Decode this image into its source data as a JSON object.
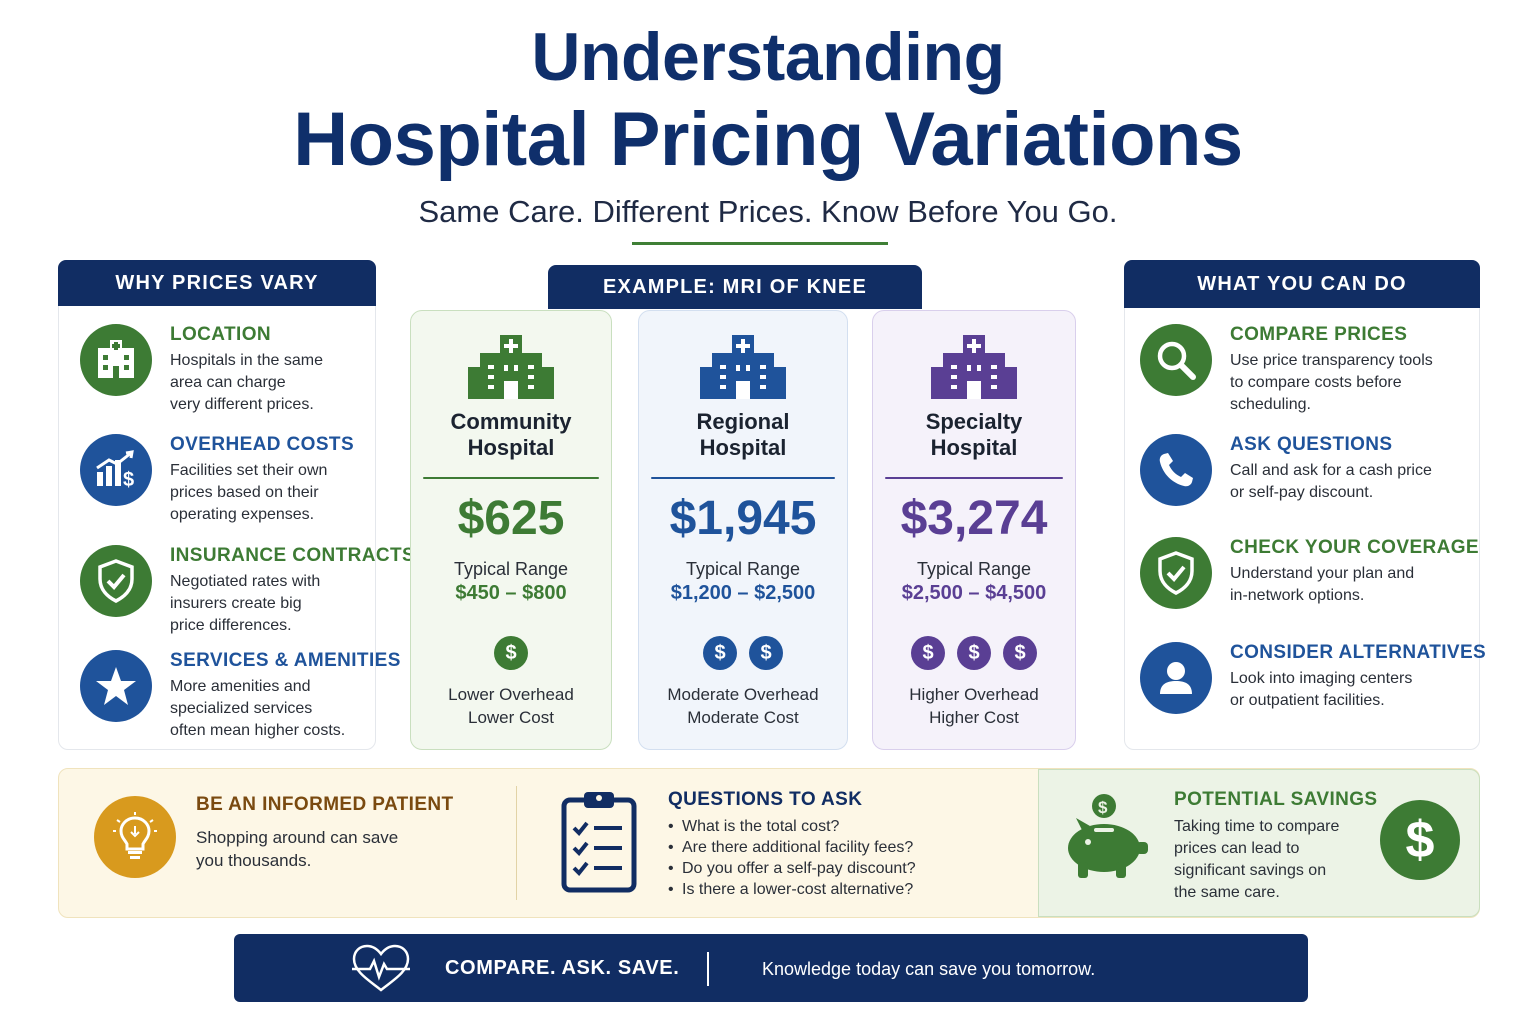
{
  "header": {
    "title_line1": "Understanding",
    "title_line2": "Hospital Pricing Variations",
    "subtitle": "Same Care. Different Prices. Know Before You Go."
  },
  "why": {
    "heading": "WHY PRICES VARY",
    "items": [
      {
        "title": "LOCATION",
        "desc": "Hospitals in the same\narea can charge\nvery different prices.",
        "icon": "hospital-building-icon"
      },
      {
        "title": "OVERHEAD COSTS",
        "desc": "Facilities set their own\nprices based on their\noperating expenses.",
        "icon": "chart-dollar-icon"
      },
      {
        "title": "INSURANCE CONTRACTS",
        "desc": "Negotiated rates with\ninsurers create big\nprice differences.",
        "icon": "shield-check-icon"
      },
      {
        "title": "SERVICES & AMENITIES",
        "desc": "More amenities and\nspecialized services\noften mean higher costs.",
        "icon": "star-icon"
      }
    ]
  },
  "example": {
    "heading": "EXAMPLE: MRI OF KNEE",
    "range_label": "Typical Range",
    "hospitals": [
      {
        "name": "Community\nHospital",
        "price": "$625",
        "range": "$450 – $800",
        "dollar_count": 1,
        "note": "Lower Overhead\nLower Cost",
        "color": "#3d7b34",
        "bg": "#f3f8ef",
        "border": "#c9dfbf"
      },
      {
        "name": "Regional\nHospital",
        "price": "$1,945",
        "range": "$1,200 – $2,500",
        "dollar_count": 2,
        "note": "Moderate Overhead\nModerate Cost",
        "color": "#1f539b",
        "bg": "#f1f5fb",
        "border": "#d3dff0"
      },
      {
        "name": "Specialty\nHospital",
        "price": "$3,274",
        "range": "$2,500 – $4,500",
        "dollar_count": 3,
        "note": "Higher Overhead\nHigher Cost",
        "color": "#5a3f94",
        "bg": "#f5f2fa",
        "border": "#d9cfec"
      }
    ],
    "dollar_symbol": "$"
  },
  "actions": {
    "heading": "WHAT YOU CAN DO",
    "items": [
      {
        "title": "COMPARE PRICES",
        "desc": "Use price transparency tools\nto compare costs before\nscheduling.",
        "icon": "magnifier-icon"
      },
      {
        "title": "ASK QUESTIONS",
        "desc": "Call and ask for a cash price\nor self-pay discount.",
        "icon": "phone-icon"
      },
      {
        "title": "CHECK YOUR COVERAGE",
        "desc": "Understand your plan and\nin-network options.",
        "icon": "shield-check-icon"
      },
      {
        "title": "CONSIDER ALTERNATIVES",
        "desc": "Look into imaging centers\nor outpatient facilities.",
        "icon": "person-icon"
      }
    ]
  },
  "bottom": {
    "informed": {
      "title": "BE AN INFORMED PATIENT",
      "text": "Shopping around can save\nyou thousands.",
      "icon": "lightbulb-icon"
    },
    "questions": {
      "title": "QUESTIONS TO ASK",
      "icon": "clipboard-checklist-icon",
      "items": [
        "What is the total cost?",
        "Are there additional facility fees?",
        "Do you offer a self-pay discount?",
        "Is there a lower-cost alternative?"
      ]
    },
    "savings": {
      "title": "POTENTIAL SAVINGS",
      "text": "Taking time to compare\nprices can lead to\nsignificant savings on\nthe same care.",
      "icon": "piggy-bank-icon",
      "badge": "$"
    }
  },
  "footer": {
    "slogan": "COMPARE. ASK. SAVE.",
    "tagline": "Knowledge today can save you tomorrow.",
    "icon": "heart-pulse-icon"
  },
  "colors": {
    "navy": "#112d63",
    "green": "#3d7b34",
    "blue": "#1f539b",
    "purple": "#5a3f94",
    "gold": "#d89a1e"
  }
}
